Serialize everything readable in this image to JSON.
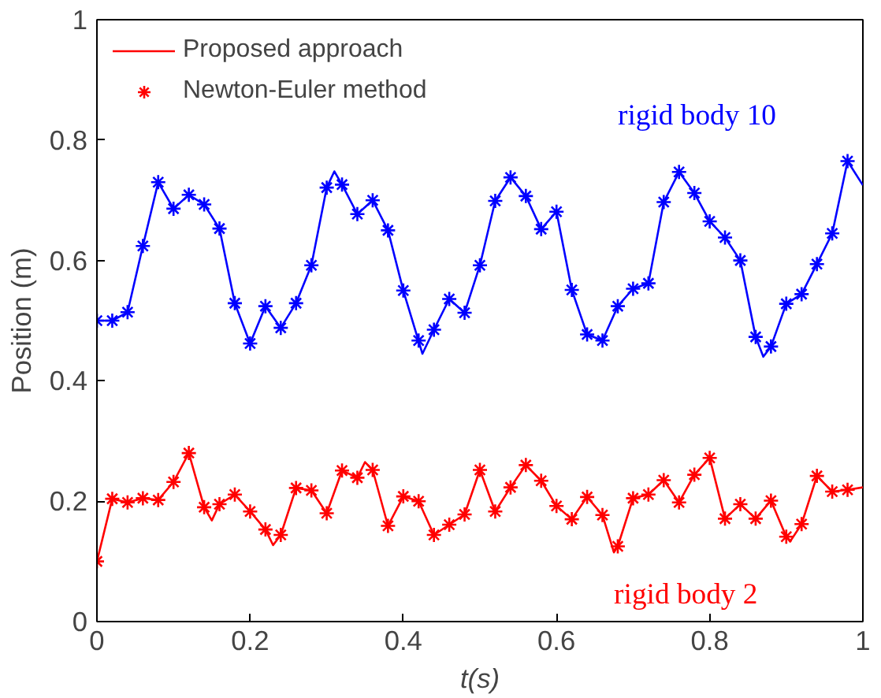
{
  "chart_data": {
    "type": "line",
    "xlabel": "t(s)",
    "ylabel": "Position (m)",
    "xlim": [
      0,
      1
    ],
    "ylim": [
      0,
      1
    ],
    "xticks": [
      0,
      0.2,
      0.4,
      0.6,
      0.8,
      1
    ],
    "yticks": [
      0,
      0.2,
      0.4,
      0.6,
      0.8,
      1
    ],
    "grid": false,
    "legend": "top left",
    "series": [
      {
        "color": "#0000ff",
        "x": [
          0,
          0.02,
          0.04,
          0.06,
          0.08,
          0.1,
          0.12,
          0.14,
          0.16,
          0.18,
          0.2,
          0.22,
          0.24,
          0.26,
          0.28,
          0.3,
          0.31,
          0.32,
          0.34,
          0.36,
          0.38,
          0.4,
          0.425,
          0.44,
          0.46,
          0.48,
          0.5,
          0.52,
          0.54,
          0.56,
          0.58,
          0.6,
          0.62,
          0.64,
          0.66,
          0.68,
          0.7,
          0.72,
          0.74,
          0.76,
          0.78,
          0.8,
          0.82,
          0.84,
          0.86,
          0.87,
          0.88,
          0.9,
          0.92,
          0.94,
          0.96,
          0.98,
          1
        ],
        "values": [
          0.5,
          0.5,
          0.514,
          0.624,
          0.73,
          0.686,
          0.709,
          0.693,
          0.653,
          0.529,
          0.462,
          0.524,
          0.488,
          0.529,
          0.592,
          0.721,
          0.748,
          0.726,
          0.677,
          0.7,
          0.65,
          0.55,
          0.445,
          0.485,
          0.536,
          0.513,
          0.592,
          0.699,
          0.738,
          0.707,
          0.652,
          0.681,
          0.551,
          0.477,
          0.467,
          0.524,
          0.553,
          0.562,
          0.697,
          0.747,
          0.712,
          0.665,
          0.638,
          0.6,
          0.473,
          0.44,
          0.457,
          0.528,
          0.544,
          0.594,
          0.645,
          0.765,
          0.725
        ]
      },
      {
        "type": "scatter",
        "marker": "cross",
        "color": "#0000ff",
        "x": [
          0,
          0.02,
          0.04,
          0.06,
          0.08,
          0.1,
          0.12,
          0.14,
          0.16,
          0.18,
          0.2,
          0.22,
          0.24,
          0.26,
          0.28,
          0.3,
          0.32,
          0.34,
          0.36,
          0.38,
          0.4,
          0.42,
          0.44,
          0.46,
          0.48,
          0.5,
          0.52,
          0.54,
          0.56,
          0.58,
          0.6,
          0.62,
          0.64,
          0.66,
          0.68,
          0.7,
          0.72,
          0.74,
          0.76,
          0.78,
          0.8,
          0.82,
          0.84,
          0.86,
          0.88,
          0.9,
          0.92,
          0.94,
          0.96,
          0.98
        ],
        "values": [
          0.5,
          0.5,
          0.514,
          0.624,
          0.73,
          0.686,
          0.709,
          0.693,
          0.653,
          0.529,
          0.462,
          0.524,
          0.488,
          0.529,
          0.592,
          0.721,
          0.726,
          0.677,
          0.7,
          0.65,
          0.55,
          0.467,
          0.485,
          0.536,
          0.513,
          0.592,
          0.699,
          0.738,
          0.707,
          0.652,
          0.681,
          0.551,
          0.477,
          0.467,
          0.524,
          0.553,
          0.562,
          0.697,
          0.747,
          0.712,
          0.665,
          0.638,
          0.6,
          0.473,
          0.457,
          0.528,
          0.544,
          0.594,
          0.645,
          0.765
        ]
      },
      {
        "name": "Proposed approach",
        "color": "#ff0000",
        "x": [
          0,
          0.02,
          0.04,
          0.06,
          0.08,
          0.1,
          0.12,
          0.14,
          0.15,
          0.16,
          0.18,
          0.2,
          0.22,
          0.23,
          0.24,
          0.26,
          0.28,
          0.3,
          0.32,
          0.34,
          0.35,
          0.36,
          0.38,
          0.4,
          0.42,
          0.44,
          0.46,
          0.48,
          0.5,
          0.52,
          0.54,
          0.56,
          0.58,
          0.6,
          0.62,
          0.64,
          0.66,
          0.675,
          0.68,
          0.7,
          0.72,
          0.74,
          0.76,
          0.78,
          0.8,
          0.82,
          0.84,
          0.86,
          0.88,
          0.9,
          0.905,
          0.92,
          0.94,
          0.96,
          0.98,
          1
        ],
        "values": [
          0.1,
          0.204,
          0.198,
          0.205,
          0.202,
          0.232,
          0.28,
          0.19,
          0.168,
          0.195,
          0.211,
          0.183,
          0.153,
          0.127,
          0.144,
          0.222,
          0.218,
          0.18,
          0.251,
          0.239,
          0.265,
          0.252,
          0.159,
          0.208,
          0.2,
          0.144,
          0.161,
          0.178,
          0.252,
          0.183,
          0.223,
          0.26,
          0.234,
          0.192,
          0.17,
          0.207,
          0.177,
          0.115,
          0.125,
          0.205,
          0.211,
          0.235,
          0.198,
          0.244,
          0.272,
          0.171,
          0.195,
          0.171,
          0.201,
          0.141,
          0.133,
          0.162,
          0.242,
          0.216,
          0.219,
          0.223
        ]
      },
      {
        "type": "scatter",
        "name": "Newton-Euler method",
        "marker": "cross",
        "color": "#ff0000",
        "x": [
          0,
          0.02,
          0.04,
          0.06,
          0.08,
          0.1,
          0.12,
          0.14,
          0.16,
          0.18,
          0.2,
          0.22,
          0.24,
          0.26,
          0.28,
          0.3,
          0.32,
          0.34,
          0.36,
          0.38,
          0.4,
          0.42,
          0.44,
          0.46,
          0.48,
          0.5,
          0.52,
          0.54,
          0.56,
          0.58,
          0.6,
          0.62,
          0.64,
          0.66,
          0.68,
          0.7,
          0.72,
          0.74,
          0.76,
          0.78,
          0.8,
          0.82,
          0.84,
          0.86,
          0.88,
          0.9,
          0.92,
          0.94,
          0.96,
          0.98
        ],
        "values": [
          0.1,
          0.204,
          0.198,
          0.205,
          0.202,
          0.232,
          0.28,
          0.19,
          0.195,
          0.211,
          0.183,
          0.153,
          0.144,
          0.222,
          0.218,
          0.18,
          0.251,
          0.239,
          0.252,
          0.159,
          0.208,
          0.2,
          0.144,
          0.161,
          0.178,
          0.252,
          0.183,
          0.223,
          0.26,
          0.234,
          0.192,
          0.17,
          0.207,
          0.177,
          0.125,
          0.205,
          0.211,
          0.235,
          0.198,
          0.244,
          0.272,
          0.171,
          0.195,
          0.171,
          0.201,
          0.141,
          0.162,
          0.242,
          0.216,
          0.219
        ]
      }
    ],
    "annotations": [
      "rigid body 10",
      "rigid body 2"
    ]
  }
}
